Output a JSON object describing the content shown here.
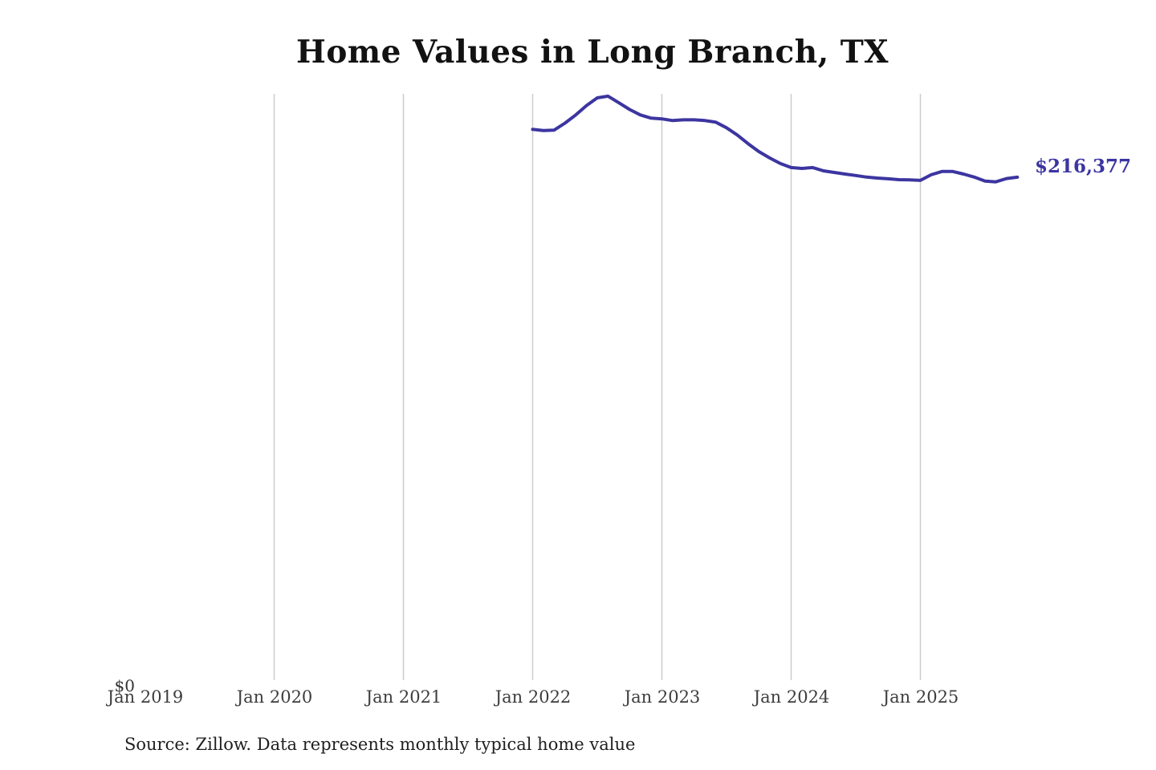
{
  "title": "Home Values in Long Branch, TX",
  "source_note": "Source: Zillow. Data represents monthly typical home value",
  "colors": {
    "line": "#3c35a0",
    "grid": "#cccccc",
    "title_text": "#121212",
    "axis_text": "#3d3d3d",
    "source_text": "#1f1f1f"
  },
  "y_axis": {
    "zero_label": "$0"
  },
  "x_axis": {
    "labels": [
      {
        "label": "Jan 2019",
        "year": 2019
      },
      {
        "label": "Jan 2020",
        "year": 2020
      },
      {
        "label": "Jan 2021",
        "year": 2021
      },
      {
        "label": "Jan 2022",
        "year": 2022
      },
      {
        "label": "Jan 2023",
        "year": 2023
      },
      {
        "label": "Jan 2024",
        "year": 2024
      },
      {
        "label": "Jan 2025",
        "year": 2025
      }
    ],
    "gridline_years": [
      2020,
      2021,
      2022,
      2023,
      2024,
      2025
    ]
  },
  "annotation": {
    "final_value_label": "$216,377"
  },
  "chart_data": {
    "type": "line",
    "title": "Home Values in Long Branch, TX",
    "xlabel": "",
    "ylabel": "",
    "ylim": [
      0,
      252000
    ],
    "grid": "vertical-only",
    "legend": "none",
    "x_tick_labels": [
      "Jan 2019",
      "Jan 2020",
      "Jan 2021",
      "Jan 2022",
      "Jan 2023",
      "Jan 2024",
      "Jan 2025"
    ],
    "final_value": 216377,
    "end_annotation": "$216,377",
    "x": [
      "2022-01",
      "2022-02",
      "2022-03",
      "2022-04",
      "2022-05",
      "2022-06",
      "2022-07",
      "2022-08",
      "2022-09",
      "2022-10",
      "2022-11",
      "2022-12",
      "2023-01",
      "2023-02",
      "2023-03",
      "2023-04",
      "2023-05",
      "2023-06",
      "2023-07",
      "2023-08",
      "2023-09",
      "2023-10",
      "2023-11",
      "2023-12",
      "2024-01",
      "2024-02",
      "2024-03",
      "2024-04",
      "2024-05",
      "2024-06",
      "2024-07",
      "2024-08",
      "2024-09",
      "2024-10",
      "2024-11",
      "2024-12",
      "2025-01",
      "2025-02",
      "2025-03",
      "2025-04",
      "2025-05",
      "2025-06",
      "2025-07",
      "2025-08",
      "2025-09",
      "2025-10"
    ],
    "values": [
      236800,
      236300,
      236500,
      239500,
      243000,
      247000,
      250300,
      251000,
      248200,
      245300,
      243000,
      241600,
      241300,
      240600,
      240900,
      240900,
      240600,
      239900,
      237500,
      234400,
      230700,
      227300,
      224600,
      222200,
      220500,
      220100,
      220500,
      219100,
      218400,
      217700,
      217100,
      216400,
      216000,
      215700,
      215300,
      215200,
      215000,
      217400,
      218800,
      218800,
      217700,
      216400,
      214700,
      214400,
      215800,
      216377
    ]
  }
}
